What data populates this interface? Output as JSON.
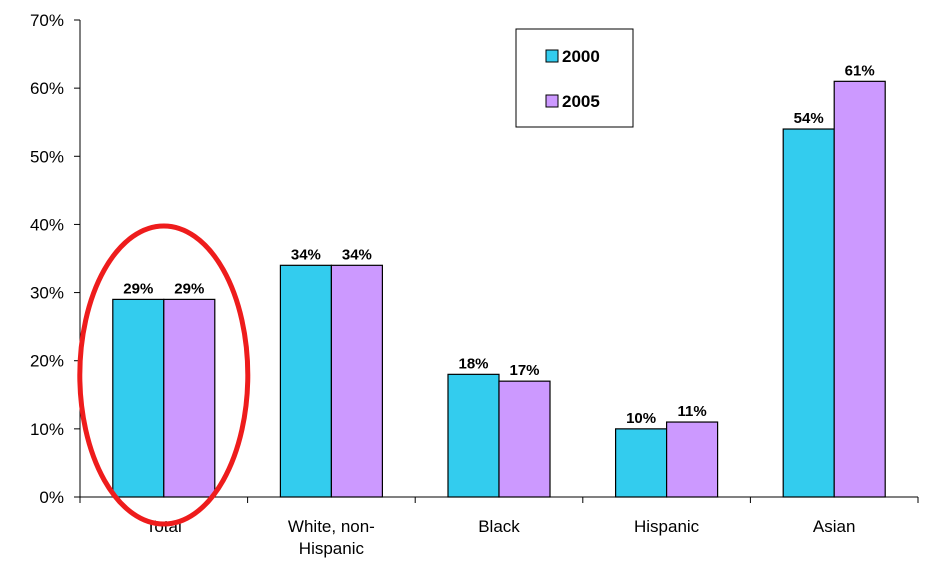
{
  "chart_data": {
    "type": "bar",
    "title": "",
    "xlabel": "",
    "ylabel": "",
    "categories": [
      [
        "Total"
      ],
      [
        "White, non-",
        "Hispanic"
      ],
      [
        "Black"
      ],
      [
        "Hispanic"
      ],
      [
        "Asian"
      ]
    ],
    "series": [
      {
        "name": "2000",
        "values": [
          29,
          34,
          18,
          10,
          54
        ],
        "labels": [
          "29%",
          "34%",
          "18%",
          "10%",
          "54%"
        ],
        "color": "#33ccee"
      },
      {
        "name": "2005",
        "values": [
          29,
          34,
          17,
          11,
          61
        ],
        "labels": [
          "29%",
          "34%",
          "17%",
          "11%",
          "61%"
        ],
        "color": "#cc99ff"
      }
    ],
    "ylim": [
      0,
      70
    ],
    "yticks": [
      0,
      10,
      20,
      30,
      40,
      50,
      60,
      70
    ],
    "ytick_labels": [
      "0%",
      "10%",
      "20%",
      "30%",
      "40%",
      "50%",
      "60%",
      "70%"
    ],
    "grid": false,
    "legend_position": "top-right",
    "highlight": {
      "category": "Total",
      "shape": "ellipse",
      "color": "#ee1c1c"
    }
  }
}
